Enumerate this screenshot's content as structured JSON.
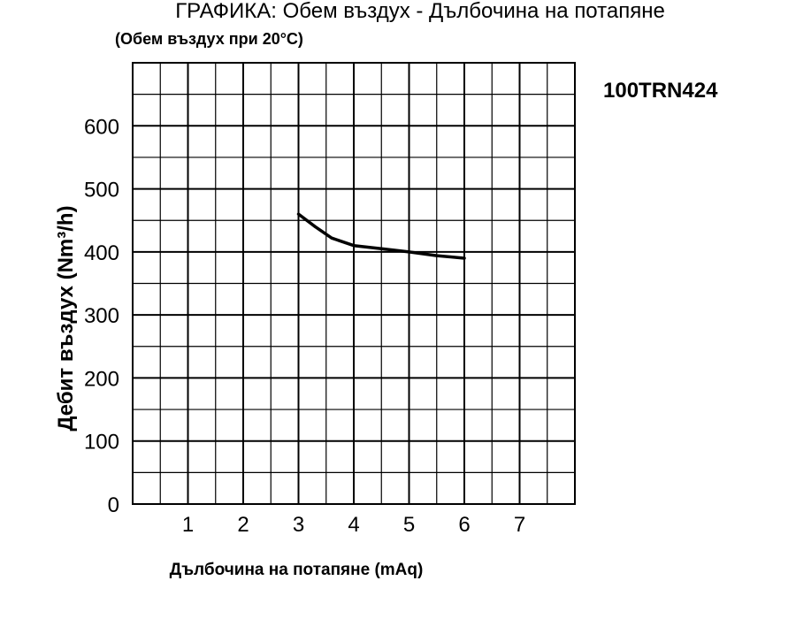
{
  "chart_data": {
    "type": "line",
    "title": "ГРАФИКА: Обем въздух - Дълбочина на потапяне",
    "subtitle": "(Обем въздух при 20°C)",
    "annotation": "100TRN424",
    "xlabel": "Дълбочина на потапяне (mAq)",
    "ylabel": "Дебит въздух (Nm³/h)",
    "xlim": [
      0,
      8
    ],
    "ylim": [
      0,
      700
    ],
    "xticks": [
      1,
      2,
      3,
      4,
      5,
      6,
      7
    ],
    "yticks": [
      0,
      100,
      200,
      300,
      400,
      500,
      600
    ],
    "grid": true,
    "series": [
      {
        "x": [
          3,
          3.3,
          3.6,
          4,
          4.5,
          5,
          5.5,
          6
        ],
        "y": [
          460,
          440,
          422,
          410,
          405,
          400,
          394,
          390
        ]
      }
    ]
  }
}
